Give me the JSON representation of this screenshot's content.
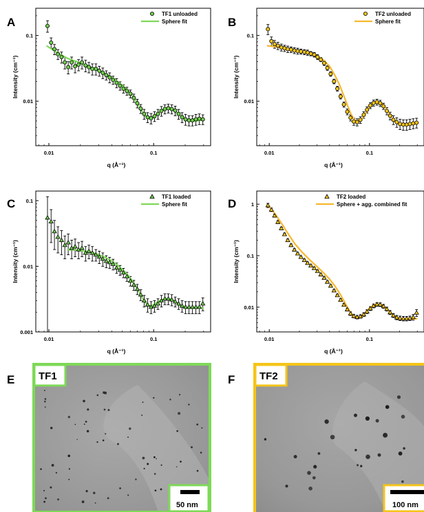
{
  "chart_data": [
    {
      "panel": "A",
      "type": "scatter",
      "log_x": true,
      "log_y": true,
      "xlabel": "q (Å⁻¹)",
      "ylabel": "Intensity (cm⁻¹)",
      "x_ticks": [
        "0.01",
        "0.1"
      ],
      "y_ticks": [
        "0.1",
        "0.01"
      ],
      "xlim": [
        0.0075,
        0.35
      ],
      "ylim": [
        0.0021,
        0.26
      ],
      "legend_position": "top-right",
      "colors": {
        "fit": "#7ed957",
        "marker": "#6fcf4d"
      },
      "series": [
        {
          "name": "TF1 unloaded",
          "kind": "points",
          "x": [
            0.0097,
            0.0105,
            0.0113,
            0.0122,
            0.0132,
            0.0142,
            0.0153,
            0.0165,
            0.0178,
            0.0192,
            0.0207,
            0.0224,
            0.0241,
            0.026,
            0.0281,
            0.0303,
            0.0327,
            0.0353,
            0.038,
            0.041,
            0.0443,
            0.0478,
            0.0515,
            0.0556,
            0.06,
            0.0647,
            0.0698,
            0.0753,
            0.0812,
            0.0876,
            0.0945,
            0.102,
            0.11,
            0.1187,
            0.128,
            0.138,
            0.149,
            0.1607,
            0.1733,
            0.187,
            0.2017,
            0.2176,
            0.2347,
            0.2532,
            0.2732,
            0.295
          ],
          "y": [
            0.14,
            0.078,
            0.062,
            0.052,
            0.047,
            0.039,
            0.033,
            0.039,
            0.034,
            0.036,
            0.039,
            0.035,
            0.033,
            0.031,
            0.031,
            0.029,
            0.027,
            0.025,
            0.023,
            0.021,
            0.019,
            0.0172,
            0.0155,
            0.0143,
            0.013,
            0.0112,
            0.0093,
            0.0077,
            0.0064,
            0.0057,
            0.0055,
            0.0059,
            0.0064,
            0.0071,
            0.0076,
            0.0078,
            0.0076,
            0.0072,
            0.0064,
            0.0057,
            0.0053,
            0.0051,
            0.0051,
            0.0053,
            0.0054,
            0.0053
          ],
          "err": [
            0.028,
            0.014,
            0.011,
            0.009,
            0.009,
            0.008,
            0.007,
            0.008,
            0.007,
            0.007,
            0.008,
            0.007,
            0.006,
            0.006,
            0.006,
            0.005,
            0.005,
            0.004,
            0.004,
            0.003,
            0.003,
            0.0025,
            0.0022,
            0.002,
            0.0018,
            0.0016,
            0.0014,
            0.0012,
            0.0011,
            0.001,
            0.001,
            0.001,
            0.0011,
            0.0012,
            0.0012,
            0.0012,
            0.0012,
            0.0012,
            0.0011,
            0.001,
            0.001,
            0.0009,
            0.0009,
            0.001,
            0.001,
            0.0009
          ]
        },
        {
          "name": "Sphere fit",
          "kind": "line",
          "x": [
            0.0095,
            0.012,
            0.015,
            0.02,
            0.025,
            0.03,
            0.035,
            0.04,
            0.045,
            0.05,
            0.055,
            0.06,
            0.065,
            0.07,
            0.075,
            0.08,
            0.085,
            0.09,
            0.095,
            0.1,
            0.11,
            0.12,
            0.13,
            0.14,
            0.15,
            0.16,
            0.17,
            0.18,
            0.19,
            0.2,
            0.22,
            0.25,
            0.28,
            0.3
          ],
          "y": [
            0.07,
            0.055,
            0.045,
            0.038,
            0.033,
            0.029,
            0.026,
            0.023,
            0.02,
            0.0175,
            0.0153,
            0.0132,
            0.0112,
            0.0093,
            0.0077,
            0.0065,
            0.0058,
            0.0054,
            0.0054,
            0.0057,
            0.0066,
            0.0074,
            0.0078,
            0.0079,
            0.0076,
            0.0071,
            0.0065,
            0.006,
            0.0056,
            0.0053,
            0.0051,
            0.005,
            0.0051,
            0.0052
          ]
        }
      ]
    },
    {
      "panel": "B",
      "type": "scatter",
      "log_x": true,
      "log_y": true,
      "xlabel": "q (Å⁻¹)",
      "ylabel": "Intensity (cm⁻¹)",
      "x_ticks": [
        "0.01",
        "0.1"
      ],
      "y_ticks": [
        "0.1",
        "0.01"
      ],
      "xlim": [
        0.0075,
        0.35
      ],
      "ylim": [
        0.0021,
        0.26
      ],
      "legend_position": "top-right",
      "colors": {
        "fit": "#f5b82e",
        "marker": "#f5c518"
      },
      "series": [
        {
          "name": "TF2 unloaded",
          "kind": "points",
          "x": [
            0.0097,
            0.0105,
            0.0113,
            0.0122,
            0.0132,
            0.0142,
            0.0153,
            0.0165,
            0.0178,
            0.0192,
            0.0207,
            0.0224,
            0.0241,
            0.026,
            0.0281,
            0.0303,
            0.0327,
            0.0353,
            0.038,
            0.041,
            0.0443,
            0.0478,
            0.0515,
            0.0556,
            0.06,
            0.0647,
            0.0698,
            0.0753,
            0.0812,
            0.0876,
            0.0945,
            0.102,
            0.11,
            0.1187,
            0.128,
            0.138,
            0.149,
            0.1607,
            0.1733,
            0.187,
            0.2017,
            0.2176,
            0.2347,
            0.2532,
            0.2732,
            0.295
          ],
          "y": [
            0.125,
            0.082,
            0.074,
            0.07,
            0.066,
            0.064,
            0.062,
            0.061,
            0.059,
            0.058,
            0.057,
            0.056,
            0.055,
            0.053,
            0.051,
            0.047,
            0.043,
            0.038,
            0.032,
            0.026,
            0.02,
            0.0155,
            0.0118,
            0.0089,
            0.0069,
            0.0056,
            0.0049,
            0.0048,
            0.0052,
            0.0062,
            0.0074,
            0.0086,
            0.0094,
            0.0097,
            0.0093,
            0.0084,
            0.0071,
            0.006,
            0.0052,
            0.0048,
            0.0045,
            0.0044,
            0.0044,
            0.0045,
            0.0046,
            0.0047
          ],
          "err": [
            0.022,
            0.013,
            0.01,
            0.009,
            0.008,
            0.007,
            0.007,
            0.006,
            0.006,
            0.006,
            0.005,
            0.005,
            0.005,
            0.004,
            0.004,
            0.004,
            0.003,
            0.003,
            0.0025,
            0.002,
            0.0016,
            0.0013,
            0.001,
            0.0008,
            0.0007,
            0.0006,
            0.0006,
            0.0006,
            0.0006,
            0.0007,
            0.0008,
            0.0009,
            0.001,
            0.001,
            0.001,
            0.0009,
            0.0009,
            0.0008,
            0.0008,
            0.0008,
            0.0008,
            0.0008,
            0.0008,
            0.0008,
            0.0008,
            0.0008
          ]
        },
        {
          "name": "Sphere fit",
          "kind": "line",
          "x": [
            0.0095,
            0.012,
            0.015,
            0.02,
            0.025,
            0.03,
            0.035,
            0.04,
            0.045,
            0.05,
            0.055,
            0.06,
            0.065,
            0.07,
            0.075,
            0.08,
            0.085,
            0.09,
            0.095,
            0.1,
            0.11,
            0.12,
            0.13,
            0.14,
            0.15,
            0.16,
            0.17,
            0.18,
            0.19,
            0.2,
            0.22,
            0.25,
            0.28,
            0.3
          ],
          "y": [
            0.07,
            0.067,
            0.063,
            0.058,
            0.054,
            0.049,
            0.042,
            0.034,
            0.025,
            0.018,
            0.0125,
            0.0088,
            0.0065,
            0.0053,
            0.0049,
            0.005,
            0.0055,
            0.0063,
            0.0072,
            0.0081,
            0.0093,
            0.0097,
            0.0094,
            0.0085,
            0.0073,
            0.0062,
            0.0054,
            0.0049,
            0.0046,
            0.0045,
            0.0044,
            0.0044,
            0.0045,
            0.0046
          ]
        }
      ]
    },
    {
      "panel": "C",
      "type": "scatter",
      "log_x": true,
      "log_y": true,
      "xlabel": "q (Å⁻¹)",
      "ylabel": "Intensity (cm⁻¹)",
      "x_ticks": [
        "0.01",
        "0.1"
      ],
      "y_ticks": [
        "0.1",
        "0.01",
        "0.001"
      ],
      "xlim": [
        0.0075,
        0.35
      ],
      "ylim": [
        0.001,
        0.14
      ],
      "legend_position": "top-right",
      "colors": {
        "fit": "#7ed957",
        "marker": "#6fcf4d"
      },
      "series": [
        {
          "name": "TF1 loaded",
          "kind": "points",
          "x": [
            0.0097,
            0.0105,
            0.0113,
            0.0122,
            0.0132,
            0.0142,
            0.0153,
            0.0165,
            0.0178,
            0.0192,
            0.0207,
            0.0224,
            0.0241,
            0.026,
            0.0281,
            0.0303,
            0.0327,
            0.0353,
            0.038,
            0.041,
            0.0443,
            0.0478,
            0.0515,
            0.0556,
            0.06,
            0.0647,
            0.0698,
            0.0753,
            0.0812,
            0.0876,
            0.0945,
            0.102,
            0.11,
            0.1187,
            0.128,
            0.138,
            0.149,
            0.1607,
            0.1733,
            0.187,
            0.2017,
            0.2176,
            0.2347,
            0.2532,
            0.2732,
            0.295
          ],
          "y": [
            0.055,
            0.048,
            0.034,
            0.028,
            0.025,
            0.021,
            0.023,
            0.019,
            0.02,
            0.018,
            0.019,
            0.016,
            0.017,
            0.016,
            0.015,
            0.014,
            0.013,
            0.012,
            0.0115,
            0.0108,
            0.0095,
            0.0088,
            0.008,
            0.007,
            0.006,
            0.0052,
            0.0045,
            0.0037,
            0.003,
            0.0026,
            0.0024,
            0.0025,
            0.0027,
            0.003,
            0.0032,
            0.0032,
            0.0031,
            0.0029,
            0.0027,
            0.0025,
            0.0024,
            0.0024,
            0.0024,
            0.0024,
            0.0024,
            0.0027
          ],
          "err": [
            0.06,
            0.025,
            0.016,
            0.012,
            0.01,
            0.008,
            0.008,
            0.006,
            0.006,
            0.005,
            0.005,
            0.004,
            0.004,
            0.004,
            0.003,
            0.003,
            0.003,
            0.0025,
            0.0022,
            0.002,
            0.0017,
            0.0015,
            0.0013,
            0.0011,
            0.001,
            0.0009,
            0.0008,
            0.0007,
            0.0006,
            0.0006,
            0.0005,
            0.0005,
            0.0005,
            0.0006,
            0.0006,
            0.0006,
            0.0006,
            0.0005,
            0.0005,
            0.0005,
            0.0005,
            0.0005,
            0.0005,
            0.0005,
            0.0005,
            0.0006
          ]
        },
        {
          "name": "Sphere fit",
          "kind": "line",
          "x": [
            0.015,
            0.02,
            0.025,
            0.03,
            0.035,
            0.04,
            0.045,
            0.05,
            0.055,
            0.06,
            0.065,
            0.07,
            0.075,
            0.08,
            0.085,
            0.09,
            0.095,
            0.1,
            0.11,
            0.12,
            0.13,
            0.14,
            0.15,
            0.16,
            0.17,
            0.18,
            0.19,
            0.2,
            0.22,
            0.25,
            0.28,
            0.3
          ],
          "y": [
            0.018,
            0.0175,
            0.0165,
            0.015,
            0.0135,
            0.012,
            0.0105,
            0.009,
            0.0078,
            0.0066,
            0.0055,
            0.0045,
            0.0037,
            0.0031,
            0.0027,
            0.0025,
            0.0025,
            0.0026,
            0.0029,
            0.0031,
            0.0032,
            0.0032,
            0.0031,
            0.0029,
            0.0027,
            0.0025,
            0.0024,
            0.0023,
            0.0023,
            0.0023,
            0.0023,
            0.0023
          ]
        }
      ]
    },
    {
      "panel": "D",
      "type": "scatter",
      "log_x": true,
      "log_y": true,
      "xlabel": "q (Å⁻¹)",
      "ylabel": "Intensity (cm⁻¹)",
      "x_ticks": [
        "0.01",
        "0.1"
      ],
      "y_ticks": [
        "1",
        "0.1",
        "0.01"
      ],
      "xlim": [
        0.0075,
        0.35
      ],
      "ylim": [
        0.0033,
        1.8
      ],
      "legend_position": "top-right",
      "colors": {
        "fit": "#f5b82e",
        "marker": "#f5c518"
      },
      "series": [
        {
          "name": "TF2 loaded",
          "kind": "points",
          "x": [
            0.0097,
            0.0105,
            0.0113,
            0.0122,
            0.0132,
            0.0142,
            0.0153,
            0.0165,
            0.0178,
            0.0192,
            0.0207,
            0.0224,
            0.0241,
            0.026,
            0.0281,
            0.0303,
            0.0327,
            0.0353,
            0.038,
            0.041,
            0.0443,
            0.0478,
            0.0515,
            0.0556,
            0.06,
            0.0647,
            0.0698,
            0.0753,
            0.0812,
            0.0876,
            0.0945,
            0.102,
            0.11,
            0.1187,
            0.128,
            0.138,
            0.149,
            0.1607,
            0.1733,
            0.187,
            0.2017,
            0.2176,
            0.2347,
            0.2532,
            0.2732,
            0.295
          ],
          "y": [
            0.95,
            0.78,
            0.6,
            0.45,
            0.34,
            0.26,
            0.2,
            0.16,
            0.13,
            0.11,
            0.094,
            0.082,
            0.072,
            0.064,
            0.057,
            0.05,
            0.043,
            0.037,
            0.031,
            0.026,
            0.021,
            0.017,
            0.0138,
            0.0111,
            0.009,
            0.0075,
            0.0067,
            0.0064,
            0.0066,
            0.0072,
            0.0082,
            0.0094,
            0.0106,
            0.0113,
            0.0112,
            0.0104,
            0.0092,
            0.0079,
            0.0069,
            0.0063,
            0.0061,
            0.006,
            0.006,
            0.0061,
            0.0064,
            0.0078
          ],
          "err": [
            0.09,
            0.06,
            0.04,
            0.03,
            0.02,
            0.015,
            0.011,
            0.009,
            0.007,
            0.006,
            0.005,
            0.004,
            0.0035,
            0.003,
            0.0027,
            0.0024,
            0.002,
            0.0018,
            0.0015,
            0.0013,
            0.0011,
            0.0009,
            0.0008,
            0.0007,
            0.0006,
            0.0006,
            0.0005,
            0.0005,
            0.0005,
            0.0006,
            0.0007,
            0.0008,
            0.0009,
            0.0009,
            0.0009,
            0.0009,
            0.0008,
            0.0007,
            0.0006,
            0.0006,
            0.0006,
            0.0006,
            0.0006,
            0.0006,
            0.0008,
            0.0012
          ]
        },
        {
          "name": "Sphere + agg. combined fit",
          "kind": "line",
          "x": [
            0.0095,
            0.011,
            0.013,
            0.015,
            0.018,
            0.021,
            0.025,
            0.03,
            0.035,
            0.04,
            0.045,
            0.05,
            0.055,
            0.06,
            0.065,
            0.07,
            0.075,
            0.08,
            0.085,
            0.09,
            0.095,
            0.1,
            0.11,
            0.12,
            0.13,
            0.14,
            0.15,
            0.16,
            0.17,
            0.18,
            0.2,
            0.22,
            0.25,
            0.3
          ],
          "y": [
            1.0,
            0.72,
            0.45,
            0.29,
            0.17,
            0.12,
            0.085,
            0.061,
            0.046,
            0.035,
            0.026,
            0.019,
            0.0138,
            0.0101,
            0.0078,
            0.0066,
            0.0061,
            0.0062,
            0.0067,
            0.0075,
            0.0085,
            0.0095,
            0.011,
            0.0115,
            0.0111,
            0.0102,
            0.0091,
            0.008,
            0.0071,
            0.0065,
            0.006,
            0.0059,
            0.0059,
            0.006
          ]
        }
      ]
    }
  ],
  "panels": {
    "A": {
      "label": "A"
    },
    "B": {
      "label": "B"
    },
    "C": {
      "label": "C"
    },
    "D": {
      "label": "D"
    },
    "E": {
      "label": "E"
    },
    "F": {
      "label": "F"
    }
  },
  "micrographs": [
    {
      "label": "TF1",
      "scale_label": "50 nm",
      "border_color": "#7ed957"
    },
    {
      "label": "TF2",
      "scale_label": "100 nm",
      "border_color": "#f5c518"
    }
  ]
}
